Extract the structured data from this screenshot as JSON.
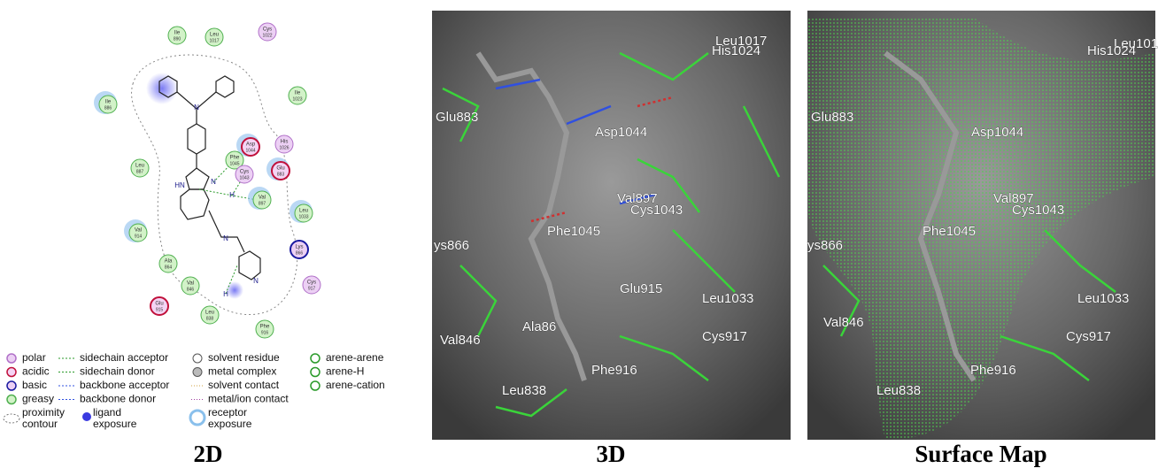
{
  "panels": [
    {
      "caption": "2D"
    },
    {
      "caption": "3D",
      "labels": [
        "Leu1017",
        "His1024",
        "Glu883",
        "Asp1044",
        "Val897",
        "Cys1043",
        "Phe1045",
        "ys866",
        "Glu915",
        "Leu1033",
        "Val846",
        "Ala86",
        "Cys917",
        "Phe916",
        "Leu838"
      ]
    },
    {
      "caption": "Surface Map",
      "labels": [
        "Leu101",
        "His1024",
        "Glu883",
        "Asp1044",
        "Val897",
        "Cys1043",
        "Phe1045",
        "ys866",
        "Leu1033",
        "Val846",
        "Cys917",
        "Phe916",
        "Leu838"
      ]
    }
  ],
  "diagram_2d": {
    "residues": [
      {
        "name": "Ile",
        "number": "890",
        "kind": "greasy"
      },
      {
        "name": "Leu",
        "number": "1017",
        "kind": "greasy"
      },
      {
        "name": "Cys",
        "number": "1022",
        "kind": "polar"
      },
      {
        "name": "Ile",
        "number": "886",
        "kind": "greasy"
      },
      {
        "name": "Ile",
        "number": "1023",
        "kind": "greasy"
      },
      {
        "name": "Asp",
        "number": "1044",
        "kind": "acidic"
      },
      {
        "name": "His",
        "number": "1026",
        "kind": "polar"
      },
      {
        "name": "Phe",
        "number": "1045",
        "kind": "greasy"
      },
      {
        "name": "Glu",
        "number": "883",
        "kind": "acidic"
      },
      {
        "name": "Cys",
        "number": "1043",
        "kind": "polar"
      },
      {
        "name": "Leu",
        "number": "887",
        "kind": "greasy"
      },
      {
        "name": "Val",
        "number": "897",
        "kind": "greasy"
      },
      {
        "name": "Leu",
        "number": "1033",
        "kind": "greasy"
      },
      {
        "name": "Val",
        "number": "914",
        "kind": "greasy"
      },
      {
        "name": "Lys",
        "number": "866",
        "kind": "basic"
      },
      {
        "name": "Ala",
        "number": "864",
        "kind": "greasy"
      },
      {
        "name": "Cys",
        "number": "917",
        "kind": "polar"
      },
      {
        "name": "Val",
        "number": "846",
        "kind": "greasy"
      },
      {
        "name": "Glu",
        "number": "915",
        "kind": "acidic"
      },
      {
        "name": "Leu",
        "number": "838",
        "kind": "greasy"
      },
      {
        "name": "Phe",
        "number": "916",
        "kind": "greasy"
      }
    ],
    "ligand_labels": [
      "N",
      "HN",
      "N",
      "N",
      "N",
      "H",
      "H"
    ],
    "legend": [
      {
        "lines": [
          "polar"
        ]
      },
      {
        "lines": [
          "acidic"
        ]
      },
      {
        "lines": [
          "basic"
        ]
      },
      {
        "lines": [
          "greasy"
        ]
      },
      {
        "lines": [
          "proximity",
          "contour"
        ]
      },
      {
        "lines": [
          "sidechain acceptor"
        ]
      },
      {
        "lines": [
          "sidechain donor"
        ]
      },
      {
        "lines": [
          "backbone acceptor"
        ]
      },
      {
        "lines": [
          "backbone donor"
        ]
      },
      {
        "lines": [
          "ligand",
          "exposure"
        ]
      },
      {
        "lines": [
          "solvent residue"
        ]
      },
      {
        "lines": [
          "metal complex"
        ]
      },
      {
        "lines": [
          "solvent contact"
        ]
      },
      {
        "lines": [
          "metal/ion contact"
        ]
      },
      {
        "lines": [
          "receptor",
          "exposure"
        ]
      },
      {
        "lines": [
          "arene-arene"
        ]
      },
      {
        "lines": [
          "arene-H"
        ]
      },
      {
        "lines": [
          "arene-cation"
        ]
      }
    ]
  }
}
